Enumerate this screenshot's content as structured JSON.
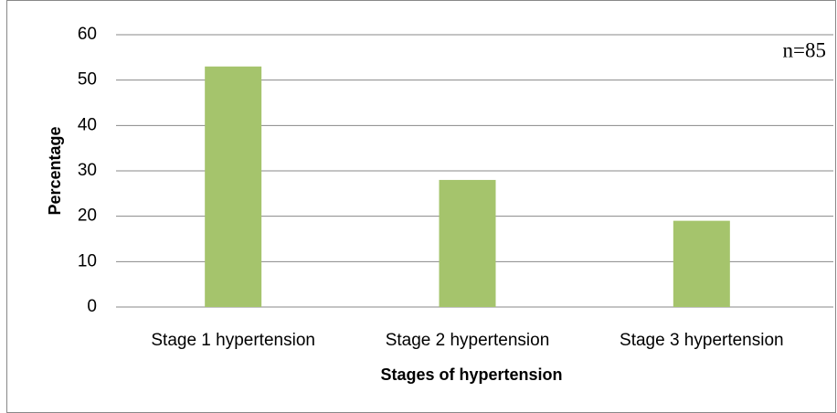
{
  "chart_data": {
    "type": "bar",
    "x_label": "Stages of hypertension",
    "y_label": "Percentage",
    "annotation": "n=85",
    "categories": [
      "Stage 1 hypertension",
      "Stage 2 hypertension",
      "Stage 3 hypertension"
    ],
    "values": [
      53,
      28,
      19
    ],
    "color": "#a5c46c",
    "ylim": [
      0,
      60
    ],
    "yticks": [
      0,
      10,
      20,
      30,
      40,
      50,
      60
    ],
    "grid": true
  }
}
